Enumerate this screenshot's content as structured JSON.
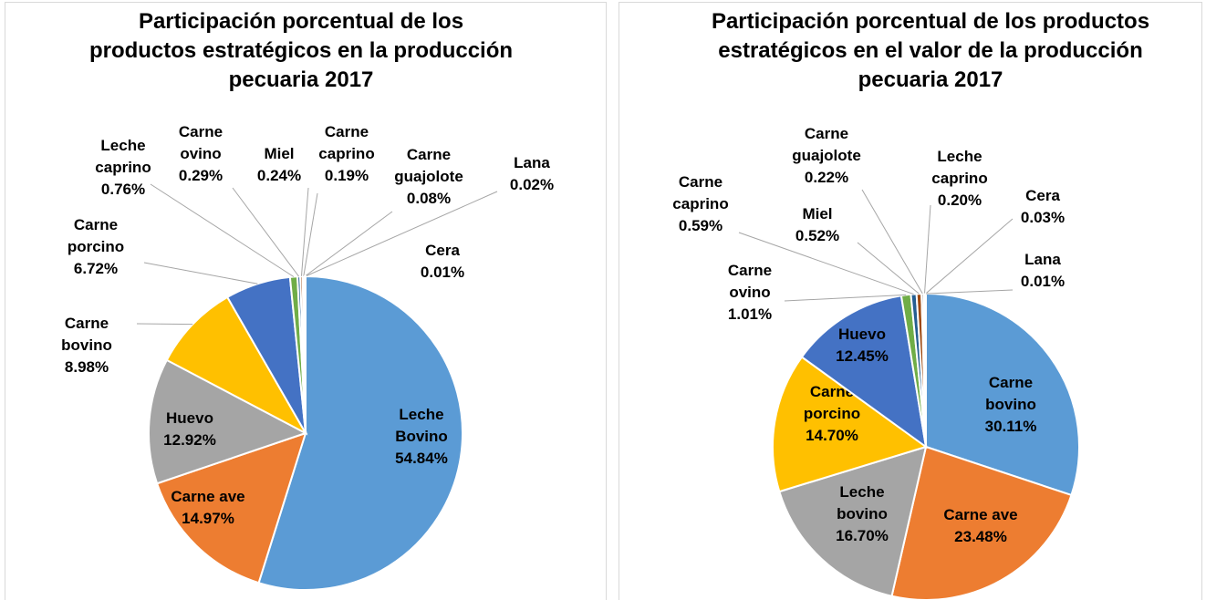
{
  "chart_data": [
    {
      "type": "pie",
      "title": "Participación porcentual de los productos estratégicos en la producción pecuaria 2017",
      "categories": [
        "Leche Bovino",
        "Carne ave",
        "Huevo",
        "Carne bovino",
        "Carne porcino",
        "Leche caprino",
        "Carne ovino",
        "Miel",
        "Carne caprino",
        "Carne guajolote",
        "Lana",
        "Cera"
      ],
      "values": [
        54.84,
        14.97,
        12.92,
        8.98,
        6.72,
        0.76,
        0.29,
        0.24,
        0.19,
        0.08,
        0.02,
        0.01
      ],
      "value_labels": [
        "54.84%",
        "14.97%",
        "12.92%",
        "8.98%",
        "6.72%",
        "0.76%",
        "0.29%",
        "0.24%",
        "0.19%",
        "0.08%",
        "0.02%",
        "0.01%"
      ],
      "colors": [
        "#5b9bd5",
        "#ed7d31",
        "#a5a5a5",
        "#ffc000",
        "#4472c4",
        "#70ad47",
        "#255e91",
        "#9e480e",
        "#636363",
        "#997300",
        "#264478",
        "#43682b"
      ]
    },
    {
      "type": "pie",
      "title": "Participación porcentual de los productos estratégicos en el valor de la producción pecuaria 2017",
      "categories": [
        "Carne bovino",
        "Carne ave",
        "Leche bovino",
        "Carne porcino",
        "Huevo",
        "Carne ovino",
        "Carne caprino",
        "Miel",
        "Carne guajolote",
        "Leche caprino",
        "Cera",
        "Lana"
      ],
      "values": [
        30.11,
        23.48,
        16.7,
        14.7,
        12.45,
        1.01,
        0.59,
        0.52,
        0.22,
        0.2,
        0.03,
        0.01
      ],
      "value_labels": [
        "30.11%",
        "23.48%",
        "16.70%",
        "14.70%",
        "12.45%",
        "1.01%",
        "0.59%",
        "0.52%",
        "0.22%",
        "0.20%",
        "0.03%",
        "0.01%"
      ],
      "colors": [
        "#5b9bd5",
        "#ed7d31",
        "#a5a5a5",
        "#ffc000",
        "#4472c4",
        "#70ad47",
        "#255e91",
        "#9e480e",
        "#636363",
        "#997300",
        "#264478",
        "#43682b"
      ]
    }
  ]
}
